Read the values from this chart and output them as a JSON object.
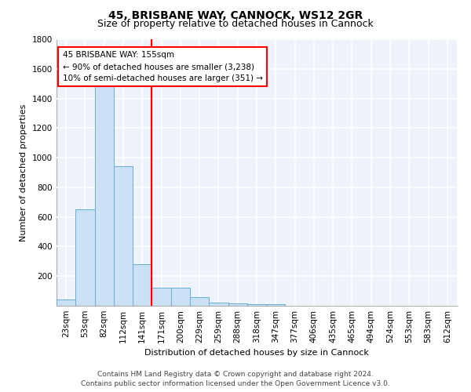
{
  "title": "45, BRISBANE WAY, CANNOCK, WS12 2GR",
  "subtitle": "Size of property relative to detached houses in Cannock",
  "xlabel": "Distribution of detached houses by size in Cannock",
  "ylabel": "Number of detached properties",
  "categories": [
    "23sqm",
    "53sqm",
    "82sqm",
    "112sqm",
    "141sqm",
    "171sqm",
    "200sqm",
    "229sqm",
    "259sqm",
    "288sqm",
    "318sqm",
    "347sqm",
    "377sqm",
    "406sqm",
    "435sqm",
    "465sqm",
    "494sqm",
    "524sqm",
    "553sqm",
    "583sqm",
    "612sqm"
  ],
  "bar_heights": [
    40,
    650,
    1480,
    940,
    280,
    120,
    120,
    60,
    20,
    15,
    10,
    10,
    0,
    0,
    0,
    0,
    0,
    0,
    0,
    0,
    0
  ],
  "bar_color": "#cce0f5",
  "bar_edge_color": "#6aaed6",
  "vline_x": 4.5,
  "vline_color": "red",
  "annotation_line1": "45 BRISBANE WAY: 155sqm",
  "annotation_line2": "← 90% of detached houses are smaller (3,238)",
  "annotation_line3": "10% of semi-detached houses are larger (351) →",
  "annotation_box_color": "white",
  "annotation_box_edge_color": "red",
  "ylim": [
    0,
    1800
  ],
  "yticks": [
    0,
    200,
    400,
    600,
    800,
    1000,
    1200,
    1400,
    1600,
    1800
  ],
  "footer_line1": "Contains HM Land Registry data © Crown copyright and database right 2024.",
  "footer_line2": "Contains public sector information licensed under the Open Government Licence v3.0.",
  "background_color": "#eef2fb",
  "grid_color": "white",
  "title_fontsize": 10,
  "subtitle_fontsize": 9,
  "axis_label_fontsize": 8,
  "tick_fontsize": 7.5,
  "annotation_fontsize": 7.5,
  "footer_fontsize": 6.5
}
